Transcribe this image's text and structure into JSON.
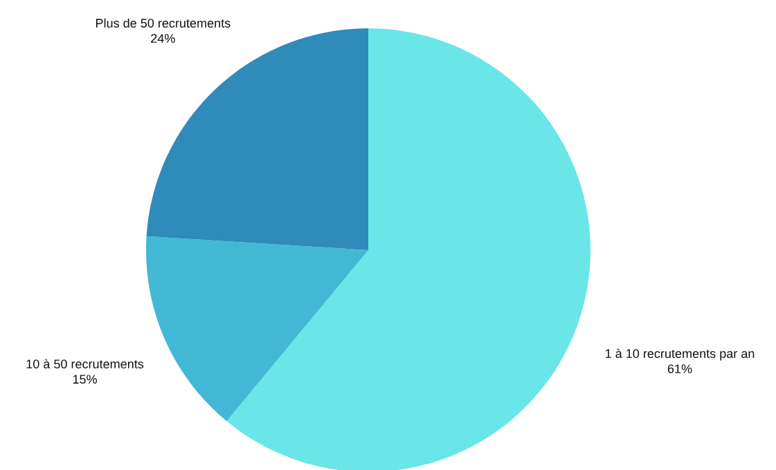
{
  "chart_data": {
    "type": "pie",
    "categories": [
      "1 à 10 recrutements par an",
      "10 à 50 recrutements",
      "Plus de 50 recrutements"
    ],
    "values": [
      61,
      15,
      24
    ],
    "value_labels": [
      "61%",
      "15%",
      "24%"
    ],
    "colors": [
      "#6ae5e8",
      "#42b8d5",
      "#2e8bba"
    ]
  }
}
